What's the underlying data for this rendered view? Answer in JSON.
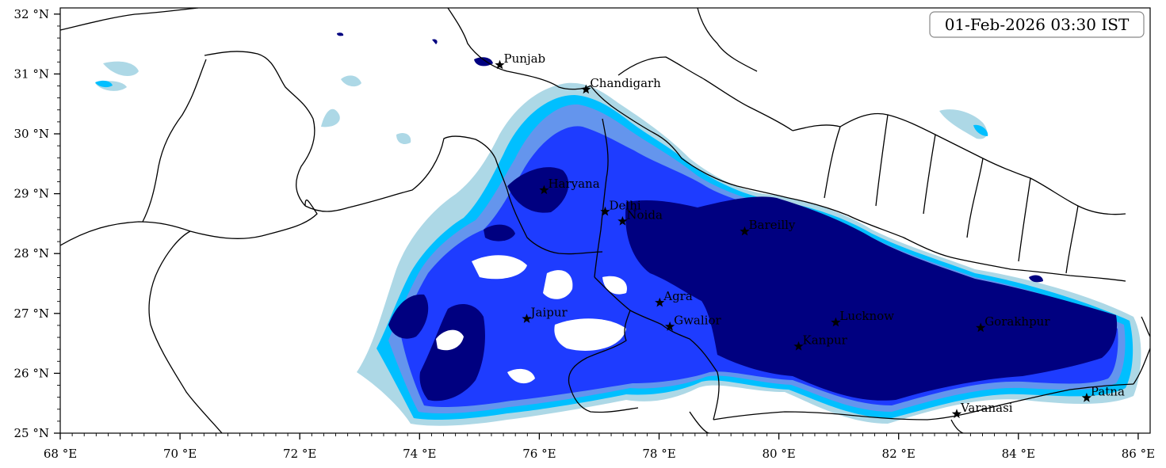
{
  "timestamp": "01-Feb-2026 03:30 IST",
  "colors": {
    "light_blue": "#add8e6",
    "deep_sky_blue": "#00bfff",
    "cornflower_blue": "#6495ed",
    "blue": "#1e3cff",
    "navy": "#000080",
    "border": "#000000"
  },
  "axes": {
    "x_ticks": [
      "68 °E",
      "70 °E",
      "72 °E",
      "74 °E",
      "76 °E",
      "78 °E",
      "80 °E",
      "82 °E",
      "84 °E",
      "86 °E"
    ],
    "y_ticks": [
      "25 °N",
      "26 °N",
      "27 °N",
      "28 °N",
      "29 °N",
      "30 °N",
      "31 °N",
      "32 °N"
    ]
  },
  "cities": [
    {
      "name": "Punjab",
      "lon": 75.34,
      "lat": 31.15
    },
    {
      "name": "Chandigarh",
      "lon": 76.78,
      "lat": 30.74
    },
    {
      "name": "Haryana",
      "lon": 76.08,
      "lat": 29.06
    },
    {
      "name": "Delhi",
      "lon": 77.1,
      "lat": 28.7
    },
    {
      "name": "Noida",
      "lon": 77.39,
      "lat": 28.54
    },
    {
      "name": "Bareilly",
      "lon": 79.43,
      "lat": 28.37
    },
    {
      "name": "Agra",
      "lon": 78.01,
      "lat": 27.18
    },
    {
      "name": "Jaipur",
      "lon": 75.79,
      "lat": 26.91
    },
    {
      "name": "Gwalior",
      "lon": 78.18,
      "lat": 26.78
    },
    {
      "name": "Lucknow",
      "lon": 80.95,
      "lat": 26.85
    },
    {
      "name": "Kanpur",
      "lon": 80.33,
      "lat": 26.45
    },
    {
      "name": "Gorakhpur",
      "lon": 83.37,
      "lat": 26.76
    },
    {
      "name": "Varanasi",
      "lon": 82.97,
      "lat": 25.32
    },
    {
      "name": "Patna",
      "lon": 85.14,
      "lat": 25.59
    }
  ]
}
